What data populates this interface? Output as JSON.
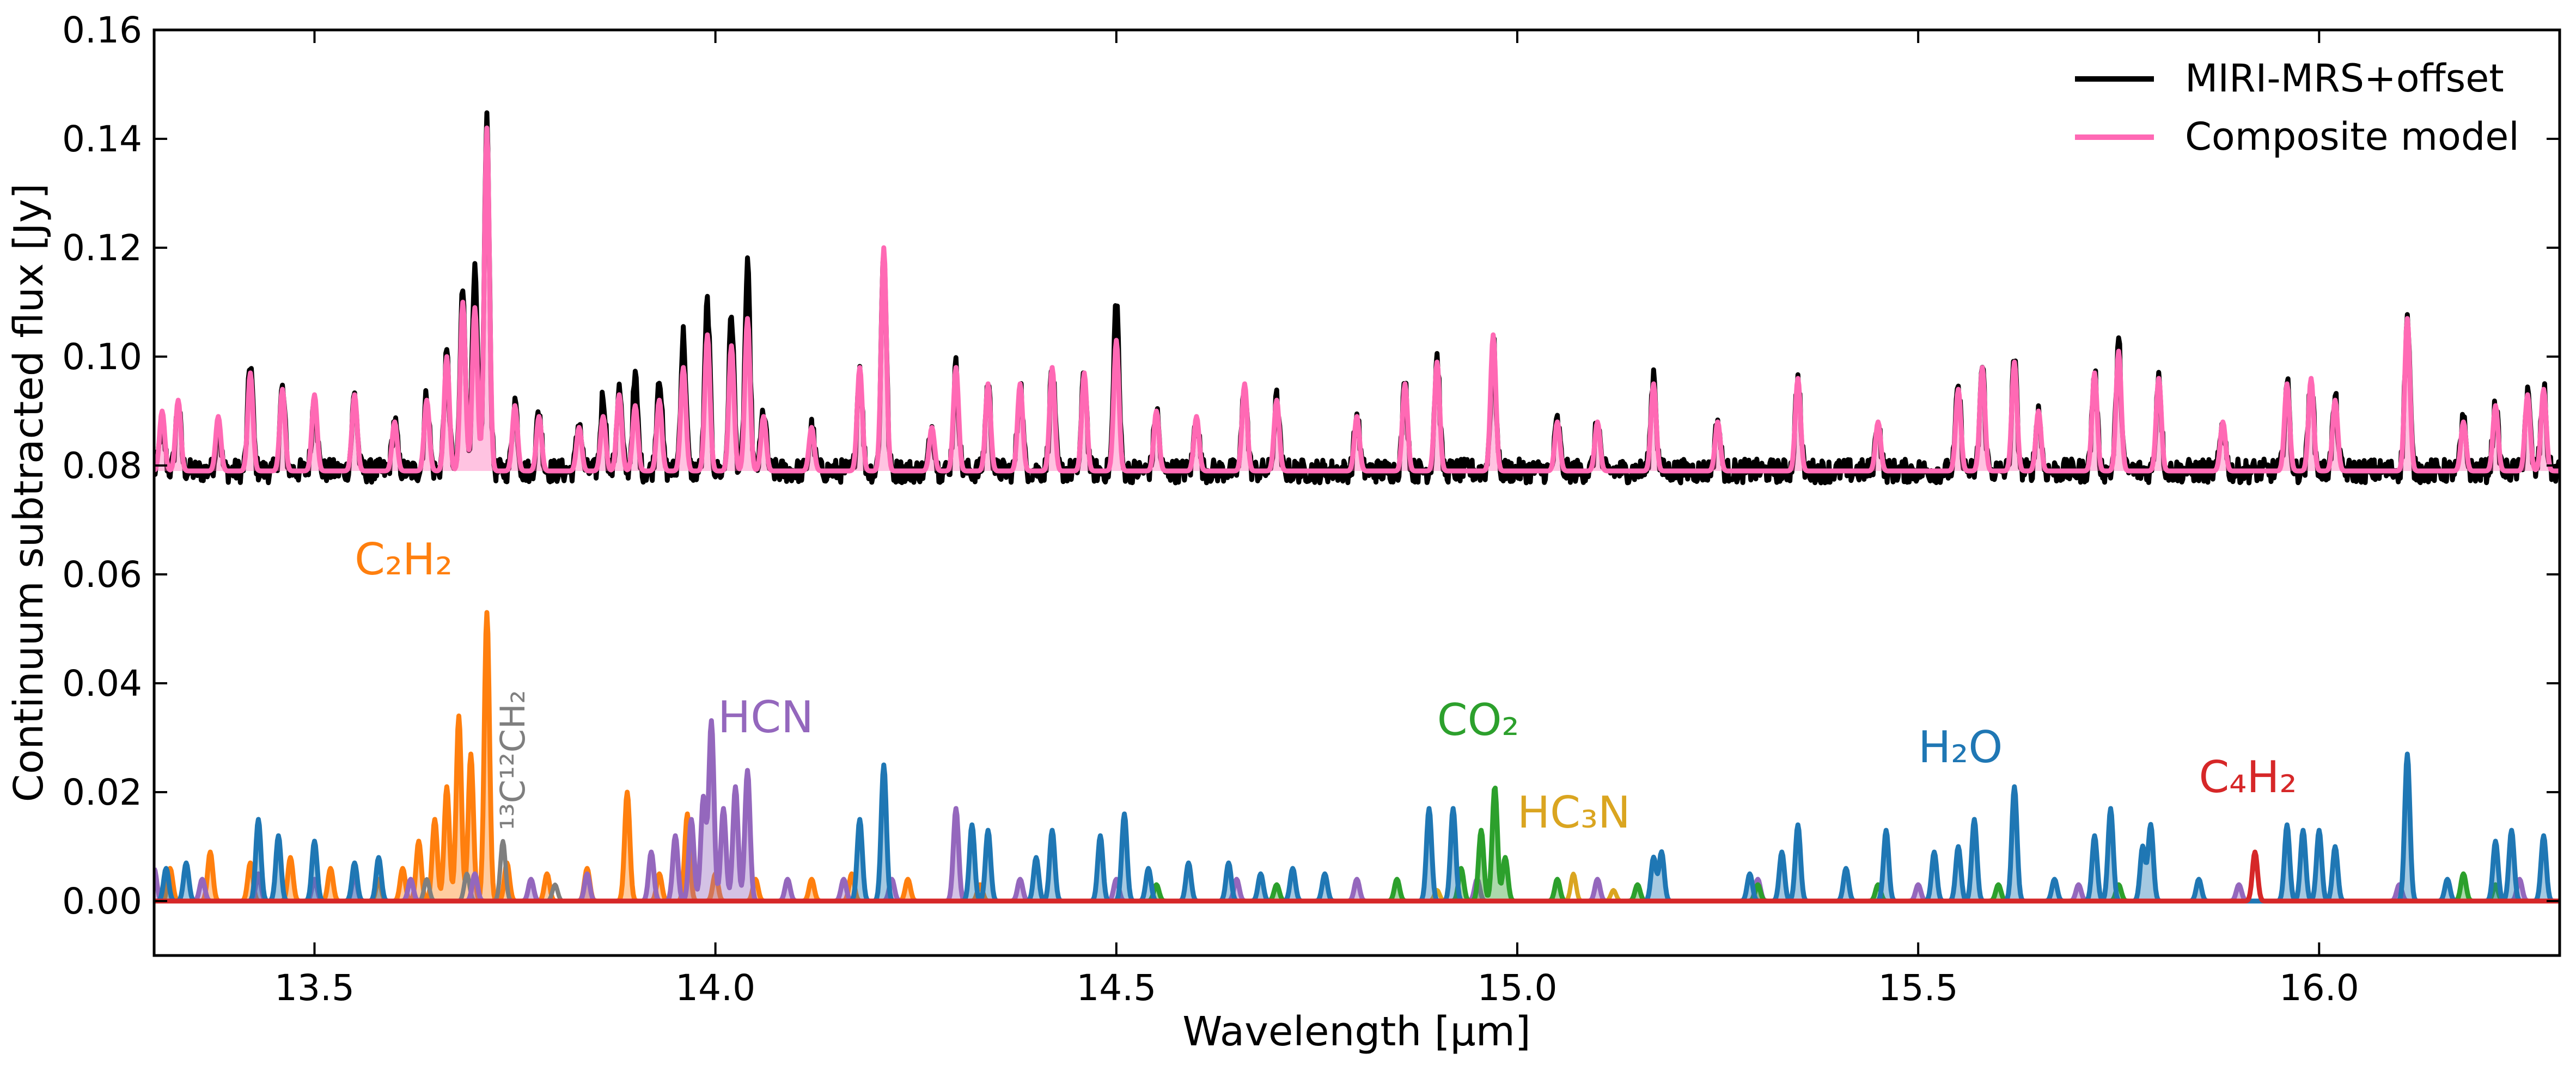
{
  "chart_data": {
    "type": "line",
    "title": "",
    "xlabel": "Wavelength [μm]",
    "ylabel": "Continuum subtracted flux [Jy]",
    "xlim": [
      13.3,
      16.3
    ],
    "ylim": [
      -0.01,
      0.16
    ],
    "xticks": [
      13.5,
      14.0,
      14.5,
      15.0,
      15.5,
      16.0
    ],
    "xtick_labels": [
      "13.5",
      "14.0",
      "14.5",
      "15.0",
      "15.5",
      "16.0"
    ],
    "yticks": [
      0.0,
      0.02,
      0.04,
      0.06,
      0.08,
      0.1,
      0.12,
      0.14,
      0.16
    ],
    "ytick_labels": [
      "0.00",
      "0.02",
      "0.04",
      "0.06",
      "0.08",
      "0.10",
      "0.12",
      "0.14",
      "0.16"
    ],
    "grid": false,
    "legend": {
      "position": "top-right",
      "entries": [
        {
          "label": "MIRI-MRS+offset",
          "color": "#000000"
        },
        {
          "label": "Composite model",
          "color": "#ff69b4"
        }
      ]
    },
    "offset_baseline": 0.079,
    "series": [
      {
        "name": "MIRI-MRS+offset",
        "color": "#000000",
        "width": 9,
        "baseline": 0.079,
        "noise": 0.0022,
        "peaks": [
          [
            13.31,
            0.088
          ],
          [
            13.33,
            0.091
          ],
          [
            13.38,
            0.087
          ],
          [
            13.42,
            0.099
          ],
          [
            13.46,
            0.094
          ],
          [
            13.5,
            0.093
          ],
          [
            13.55,
            0.093
          ],
          [
            13.6,
            0.088
          ],
          [
            13.64,
            0.093
          ],
          [
            13.665,
            0.1
          ],
          [
            13.685,
            0.113
          ],
          [
            13.7,
            0.115
          ],
          [
            13.715,
            0.143
          ],
          [
            13.75,
            0.092
          ],
          [
            13.78,
            0.09
          ],
          [
            13.83,
            0.088
          ],
          [
            13.86,
            0.093
          ],
          [
            13.88,
            0.094
          ],
          [
            13.9,
            0.096
          ],
          [
            13.93,
            0.097
          ],
          [
            13.96,
            0.104
          ],
          [
            13.99,
            0.11
          ],
          [
            14.02,
            0.108
          ],
          [
            14.04,
            0.116
          ],
          [
            14.06,
            0.09
          ],
          [
            14.12,
            0.087
          ],
          [
            14.18,
            0.098
          ],
          [
            14.21,
            0.12
          ],
          [
            14.27,
            0.087
          ],
          [
            14.3,
            0.098
          ],
          [
            14.34,
            0.095
          ],
          [
            14.38,
            0.095
          ],
          [
            14.42,
            0.098
          ],
          [
            14.46,
            0.097
          ],
          [
            14.5,
            0.111
          ],
          [
            14.55,
            0.09
          ],
          [
            14.6,
            0.089
          ],
          [
            14.66,
            0.095
          ],
          [
            14.7,
            0.092
          ],
          [
            14.8,
            0.089
          ],
          [
            14.86,
            0.095
          ],
          [
            14.9,
            0.1
          ],
          [
            14.97,
            0.103
          ],
          [
            15.05,
            0.088
          ],
          [
            15.1,
            0.088
          ],
          [
            15.17,
            0.097
          ],
          [
            15.25,
            0.088
          ],
          [
            15.35,
            0.096
          ],
          [
            15.45,
            0.088
          ],
          [
            15.55,
            0.094
          ],
          [
            15.58,
            0.098
          ],
          [
            15.62,
            0.099
          ],
          [
            15.65,
            0.09
          ],
          [
            15.72,
            0.097
          ],
          [
            15.75,
            0.102
          ],
          [
            15.8,
            0.097
          ],
          [
            15.88,
            0.088
          ],
          [
            15.96,
            0.095
          ],
          [
            15.99,
            0.096
          ],
          [
            16.02,
            0.092
          ],
          [
            16.11,
            0.107
          ],
          [
            16.18,
            0.088
          ],
          [
            16.22,
            0.091
          ],
          [
            16.26,
            0.093
          ],
          [
            16.28,
            0.094
          ]
        ]
      },
      {
        "name": "Composite model",
        "color": "#ff69b4",
        "width": 9,
        "baseline": 0.079,
        "fill": true,
        "peaks": [
          [
            13.31,
            0.09
          ],
          [
            13.33,
            0.092
          ],
          [
            13.38,
            0.089
          ],
          [
            13.42,
            0.097
          ],
          [
            13.46,
            0.094
          ],
          [
            13.5,
            0.093
          ],
          [
            13.55,
            0.093
          ],
          [
            13.6,
            0.088
          ],
          [
            13.64,
            0.092
          ],
          [
            13.665,
            0.1
          ],
          [
            13.685,
            0.11
          ],
          [
            13.7,
            0.109
          ],
          [
            13.715,
            0.142
          ],
          [
            13.75,
            0.091
          ],
          [
            13.78,
            0.089
          ],
          [
            13.83,
            0.087
          ],
          [
            13.86,
            0.089
          ],
          [
            13.88,
            0.093
          ],
          [
            13.9,
            0.091
          ],
          [
            13.93,
            0.092
          ],
          [
            13.96,
            0.098
          ],
          [
            13.99,
            0.104
          ],
          [
            14.02,
            0.102
          ],
          [
            14.04,
            0.107
          ],
          [
            14.06,
            0.089
          ],
          [
            14.12,
            0.087
          ],
          [
            14.18,
            0.098
          ],
          [
            14.21,
            0.12
          ],
          [
            14.27,
            0.087
          ],
          [
            14.3,
            0.098
          ],
          [
            14.34,
            0.095
          ],
          [
            14.38,
            0.095
          ],
          [
            14.42,
            0.098
          ],
          [
            14.46,
            0.097
          ],
          [
            14.5,
            0.103
          ],
          [
            14.55,
            0.09
          ],
          [
            14.6,
            0.089
          ],
          [
            14.66,
            0.095
          ],
          [
            14.7,
            0.092
          ],
          [
            14.8,
            0.089
          ],
          [
            14.86,
            0.095
          ],
          [
            14.9,
            0.099
          ],
          [
            14.97,
            0.104
          ],
          [
            15.05,
            0.088
          ],
          [
            15.1,
            0.088
          ],
          [
            15.17,
            0.095
          ],
          [
            15.25,
            0.088
          ],
          [
            15.35,
            0.096
          ],
          [
            15.45,
            0.088
          ],
          [
            15.55,
            0.094
          ],
          [
            15.58,
            0.098
          ],
          [
            15.62,
            0.099
          ],
          [
            15.65,
            0.09
          ],
          [
            15.72,
            0.097
          ],
          [
            15.75,
            0.101
          ],
          [
            15.8,
            0.096
          ],
          [
            15.88,
            0.088
          ],
          [
            15.96,
            0.095
          ],
          [
            15.99,
            0.096
          ],
          [
            16.02,
            0.092
          ],
          [
            16.11,
            0.107
          ],
          [
            16.18,
            0.088
          ],
          [
            16.22,
            0.091
          ],
          [
            16.26,
            0.093
          ],
          [
            16.28,
            0.094
          ]
        ]
      },
      {
        "name": "C₂H₂",
        "color": "#ff7f0e",
        "width": 9,
        "baseline": 0.0,
        "fill": true,
        "peaks": [
          [
            13.32,
            0.006
          ],
          [
            13.37,
            0.009
          ],
          [
            13.42,
            0.007
          ],
          [
            13.47,
            0.008
          ],
          [
            13.52,
            0.006
          ],
          [
            13.58,
            0.004
          ],
          [
            13.61,
            0.006
          ],
          [
            13.63,
            0.011
          ],
          [
            13.65,
            0.015
          ],
          [
            13.665,
            0.021
          ],
          [
            13.68,
            0.034
          ],
          [
            13.695,
            0.027
          ],
          [
            13.715,
            0.053
          ],
          [
            13.74,
            0.007
          ],
          [
            13.79,
            0.005
          ],
          [
            13.84,
            0.006
          ],
          [
            13.89,
            0.02
          ],
          [
            13.93,
            0.005
          ],
          [
            13.965,
            0.016
          ],
          [
            14.0,
            0.005
          ],
          [
            14.05,
            0.004
          ],
          [
            14.12,
            0.004
          ],
          [
            14.17,
            0.005
          ],
          [
            14.24,
            0.004
          ],
          [
            14.33,
            0.003
          ]
        ]
      },
      {
        "name": "¹³C¹²CH₂",
        "color": "#7f7f7f",
        "width": 8,
        "baseline": 0.0,
        "fill": false,
        "peaks": [
          [
            13.64,
            0.004
          ],
          [
            13.69,
            0.005
          ],
          [
            13.735,
            0.011
          ],
          [
            13.8,
            0.003
          ]
        ]
      },
      {
        "name": "HCN",
        "color": "#9467bd",
        "width": 9,
        "baseline": 0.0,
        "fill": true,
        "peaks": [
          [
            13.3,
            0.006
          ],
          [
            13.36,
            0.004
          ],
          [
            13.43,
            0.005
          ],
          [
            13.5,
            0.004
          ],
          [
            13.55,
            0.005
          ],
          [
            13.62,
            0.004
          ],
          [
            13.7,
            0.005
          ],
          [
            13.77,
            0.004
          ],
          [
            13.84,
            0.005
          ],
          [
            13.92,
            0.009
          ],
          [
            13.95,
            0.012
          ],
          [
            13.97,
            0.015
          ],
          [
            13.985,
            0.019
          ],
          [
            13.995,
            0.033
          ],
          [
            14.01,
            0.017
          ],
          [
            14.025,
            0.021
          ],
          [
            14.04,
            0.024
          ],
          [
            14.09,
            0.004
          ],
          [
            14.16,
            0.004
          ],
          [
            14.22,
            0.004
          ],
          [
            14.3,
            0.017
          ],
          [
            14.38,
            0.004
          ],
          [
            14.5,
            0.004
          ],
          [
            14.65,
            0.004
          ],
          [
            14.8,
            0.004
          ],
          [
            14.95,
            0.004
          ],
          [
            15.1,
            0.004
          ],
          [
            15.3,
            0.004
          ],
          [
            15.5,
            0.003
          ],
          [
            15.7,
            0.003
          ],
          [
            15.9,
            0.003
          ],
          [
            16.1,
            0.003
          ],
          [
            16.25,
            0.004
          ]
        ]
      },
      {
        "name": "CO₂",
        "color": "#2ca02c",
        "width": 9,
        "baseline": 0.0,
        "fill": true,
        "peaks": [
          [
            14.55,
            0.003
          ],
          [
            14.7,
            0.003
          ],
          [
            14.85,
            0.004
          ],
          [
            14.93,
            0.006
          ],
          [
            14.955,
            0.013
          ],
          [
            14.972,
            0.021
          ],
          [
            14.985,
            0.008
          ],
          [
            15.05,
            0.004
          ],
          [
            15.15,
            0.003
          ],
          [
            15.3,
            0.003
          ],
          [
            15.45,
            0.003
          ],
          [
            15.6,
            0.003
          ],
          [
            15.75,
            0.003
          ],
          [
            16.18,
            0.005
          ],
          [
            16.22,
            0.003
          ]
        ]
      },
      {
        "name": "HC₃N",
        "color": "#daa520",
        "width": 8,
        "baseline": 0.0,
        "fill": false,
        "peaks": [
          [
            14.9,
            0.002
          ],
          [
            15.07,
            0.005
          ],
          [
            15.12,
            0.002
          ]
        ]
      },
      {
        "name": "H₂O",
        "color": "#1f77b4",
        "width": 9,
        "baseline": 0.0,
        "fill": true,
        "peaks": [
          [
            13.315,
            0.006
          ],
          [
            13.34,
            0.007
          ],
          [
            13.43,
            0.015
          ],
          [
            13.455,
            0.012
          ],
          [
            13.5,
            0.011
          ],
          [
            13.55,
            0.007
          ],
          [
            13.58,
            0.008
          ],
          [
            14.18,
            0.015
          ],
          [
            14.21,
            0.025
          ],
          [
            14.32,
            0.014
          ],
          [
            14.34,
            0.013
          ],
          [
            14.4,
            0.008
          ],
          [
            14.42,
            0.013
          ],
          [
            14.48,
            0.012
          ],
          [
            14.51,
            0.016
          ],
          [
            14.54,
            0.006
          ],
          [
            14.59,
            0.007
          ],
          [
            14.64,
            0.007
          ],
          [
            14.68,
            0.005
          ],
          [
            14.72,
            0.006
          ],
          [
            14.76,
            0.005
          ],
          [
            14.89,
            0.017
          ],
          [
            14.92,
            0.017
          ],
          [
            15.17,
            0.008
          ],
          [
            15.18,
            0.009
          ],
          [
            15.29,
            0.005
          ],
          [
            15.33,
            0.009
          ],
          [
            15.35,
            0.014
          ],
          [
            15.41,
            0.006
          ],
          [
            15.46,
            0.013
          ],
          [
            15.52,
            0.009
          ],
          [
            15.55,
            0.01
          ],
          [
            15.57,
            0.015
          ],
          [
            15.62,
            0.021
          ],
          [
            15.67,
            0.004
          ],
          [
            15.72,
            0.012
          ],
          [
            15.74,
            0.017
          ],
          [
            15.78,
            0.01
          ],
          [
            15.79,
            0.014
          ],
          [
            15.85,
            0.004
          ],
          [
            15.96,
            0.014
          ],
          [
            15.98,
            0.013
          ],
          [
            16.0,
            0.013
          ],
          [
            16.02,
            0.01
          ],
          [
            16.11,
            0.027
          ],
          [
            16.16,
            0.004
          ],
          [
            16.22,
            0.011
          ],
          [
            16.24,
            0.013
          ],
          [
            16.28,
            0.012
          ]
        ]
      },
      {
        "name": "C₄H₂",
        "color": "#d62728",
        "width": 9,
        "baseline": 0.0,
        "fill": false,
        "peaks": [
          [
            15.92,
            0.009
          ]
        ]
      }
    ],
    "annotations": [
      {
        "text": "C₂H₂",
        "x": 13.55,
        "y": 0.06,
        "color": "#ff7f0e",
        "rotate": false
      },
      {
        "text": "¹³C¹²CH₂",
        "x": 13.762,
        "y": 0.013,
        "color": "#7f7f7f",
        "rotate": true
      },
      {
        "text": "HCN",
        "x": 14.003,
        "y": 0.031,
        "color": "#9467bd",
        "rotate": false
      },
      {
        "text": "CO₂",
        "x": 14.9,
        "y": 0.0305,
        "color": "#2ca02c",
        "rotate": false
      },
      {
        "text": "HC₃N",
        "x": 15.0,
        "y": 0.0135,
        "color": "#daa520",
        "rotate": false
      },
      {
        "text": "H₂O",
        "x": 15.5,
        "y": 0.0255,
        "color": "#1f77b4",
        "rotate": false
      },
      {
        "text": "C₄H₂",
        "x": 15.85,
        "y": 0.02,
        "color": "#d62728",
        "rotate": false
      }
    ]
  }
}
